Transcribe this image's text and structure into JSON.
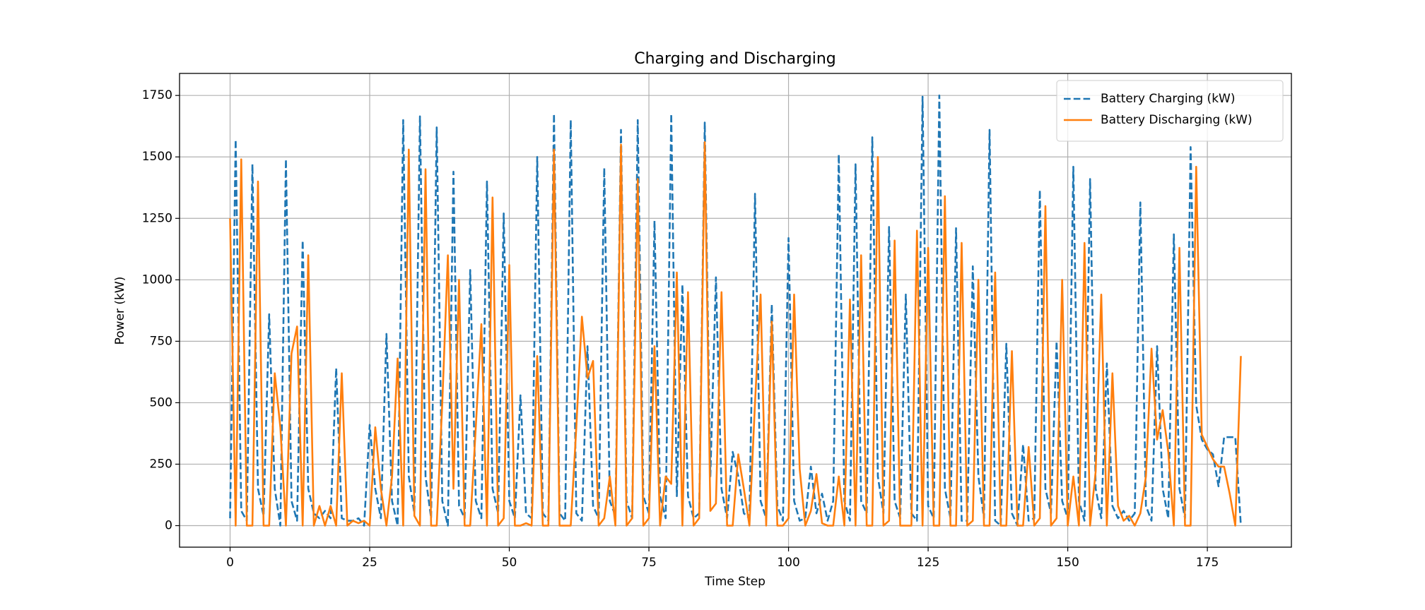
{
  "chart_data": {
    "type": "line",
    "title": "Charging and Discharging",
    "xlabel": "Time Step",
    "ylabel": "Power (kW)",
    "x": [
      0,
      1,
      2,
      3,
      4,
      5,
      6,
      7,
      8,
      9,
      10,
      11,
      12,
      13,
      14,
      15,
      16,
      17,
      18,
      19,
      20,
      21,
      22,
      23,
      24,
      25,
      26,
      27,
      28,
      29,
      30,
      31,
      32,
      33,
      34,
      35,
      36,
      37,
      38,
      39,
      40,
      41,
      42,
      43,
      44,
      45,
      46,
      47,
      48,
      49,
      50,
      51,
      52,
      53,
      54,
      55,
      56,
      57,
      58,
      59,
      60,
      61,
      62,
      63,
      64,
      65,
      66,
      67,
      68,
      69,
      70,
      71,
      72,
      73,
      74,
      75,
      76,
      77,
      78,
      79,
      80,
      81,
      82,
      83,
      84,
      85,
      86,
      87,
      88,
      89,
      90,
      91,
      92,
      93,
      94,
      95,
      96,
      97,
      98,
      99,
      100,
      101,
      102,
      103,
      104,
      105,
      106,
      107,
      108,
      109,
      110,
      111,
      112,
      113,
      114,
      115,
      116,
      117,
      118,
      119,
      120,
      121,
      122,
      123,
      124,
      125,
      126,
      127,
      128,
      129,
      130,
      131,
      132,
      133,
      134,
      135,
      136,
      137,
      138,
      139,
      140,
      141,
      142,
      143,
      144,
      145,
      146,
      147,
      148,
      149,
      150,
      151,
      152,
      153,
      154,
      155,
      156,
      157,
      158,
      159,
      160,
      161,
      162,
      163,
      164,
      165,
      166,
      167,
      168,
      169,
      170,
      171,
      172,
      173,
      174,
      175,
      176,
      177,
      178,
      179,
      180,
      181
    ],
    "series": [
      {
        "name": "Battery Charging (kW)",
        "color": "#1f77b4",
        "dash": true,
        "values": [
          30,
          1570,
          60,
          20,
          1470,
          150,
          40,
          860,
          150,
          0,
          1490,
          100,
          20,
          1160,
          150,
          50,
          30,
          60,
          30,
          640,
          30,
          20,
          20,
          30,
          0,
          410,
          150,
          30,
          780,
          100,
          0,
          1650,
          200,
          50,
          1665,
          200,
          30,
          1620,
          100,
          0,
          1440,
          80,
          30,
          1040,
          100,
          30,
          1400,
          150,
          50,
          1270,
          100,
          30,
          530,
          50,
          30,
          1500,
          50,
          20,
          1675,
          50,
          20,
          1650,
          50,
          20,
          730,
          80,
          30,
          1455,
          100,
          40,
          1610,
          100,
          30,
          1650,
          120,
          50,
          1240,
          120,
          30,
          1675,
          120,
          980,
          120,
          30,
          50,
          1640,
          200,
          1010,
          150,
          30,
          300,
          200,
          50,
          30,
          1350,
          100,
          30,
          900,
          80,
          20,
          1170,
          100,
          20,
          30,
          240,
          50,
          130,
          20,
          100,
          1510,
          100,
          20,
          1470,
          100,
          50,
          1580,
          200,
          50,
          1215,
          100,
          30,
          940,
          50,
          20,
          1745,
          80,
          30,
          1750,
          150,
          30,
          1210,
          20,
          20,
          1055,
          200,
          30,
          1610,
          20,
          0,
          740,
          50,
          0,
          330,
          20,
          30,
          1365,
          150,
          50,
          750,
          100,
          30,
          1460,
          100,
          20,
          1410,
          150,
          30,
          660,
          80,
          30,
          60,
          20,
          50,
          1315,
          80,
          20,
          730,
          150,
          30,
          1185,
          150,
          30,
          1540,
          490,
          350,
          310,
          290,
          160,
          360,
          360,
          360,
          0
        ]
      },
      {
        "name": "Battery Discharging (kW)",
        "color": "#ff7f0e",
        "dash": false,
        "values": [
          1250,
          0,
          1490,
          0,
          0,
          1400,
          0,
          0,
          620,
          400,
          0,
          700,
          810,
          0,
          1100,
          0,
          80,
          0,
          80,
          0,
          620,
          0,
          20,
          10,
          20,
          0,
          400,
          150,
          0,
          200,
          680,
          0,
          1530,
          40,
          0,
          1450,
          0,
          0,
          500,
          1100,
          150,
          1000,
          0,
          0,
          400,
          820,
          0,
          1335,
          0,
          30,
          1060,
          0,
          0,
          10,
          0,
          690,
          0,
          0,
          1530,
          0,
          0,
          0,
          400,
          850,
          600,
          670,
          0,
          30,
          200,
          0,
          1550,
          0,
          30,
          1410,
          0,
          30,
          730,
          0,
          200,
          170,
          1030,
          0,
          950,
          0,
          30,
          1560,
          60,
          90,
          950,
          0,
          0,
          290,
          150,
          0,
          500,
          940,
          0,
          830,
          0,
          0,
          30,
          940,
          230,
          0,
          60,
          210,
          10,
          0,
          0,
          200,
          0,
          920,
          0,
          1100,
          0,
          0,
          1500,
          0,
          20,
          1160,
          0,
          0,
          0,
          1200,
          0,
          1130,
          0,
          0,
          1340,
          0,
          0,
          1150,
          0,
          20,
          1000,
          0,
          0,
          1030,
          0,
          0,
          710,
          0,
          0,
          320,
          0,
          30,
          1300,
          0,
          30,
          1000,
          0,
          200,
          0,
          1150,
          0,
          220,
          940,
          0,
          620,
          80,
          20,
          40,
          0,
          50,
          200,
          720,
          350,
          470,
          300,
          0,
          1130,
          0,
          0,
          1460,
          370,
          320,
          270,
          240,
          240,
          130,
          0,
          690
        ]
      }
    ],
    "xlim": [
      -9.05,
      190.05
    ],
    "ylim": [
      -87.6,
      1839.6
    ],
    "xticks": [
      0,
      25,
      50,
      75,
      100,
      125,
      150,
      175
    ],
    "yticks": [
      0,
      250,
      500,
      750,
      1000,
      1250,
      1500,
      1750
    ],
    "grid": true,
    "legend": "upper right"
  }
}
